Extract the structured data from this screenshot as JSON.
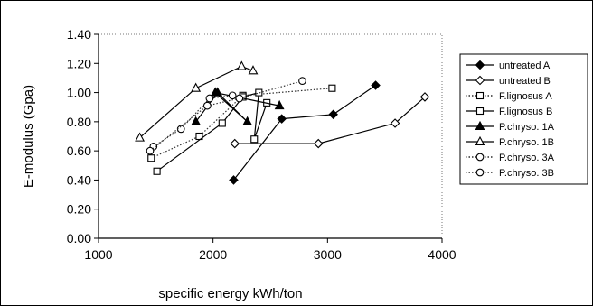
{
  "chart_data": {
    "type": "line",
    "title": "",
    "xlabel": "specific energy kWh/ton",
    "ylabel": "E-modulus (Gpa)",
    "xlim": [
      1000,
      4000
    ],
    "ylim": [
      0.0,
      1.4
    ],
    "xticks": [
      1000,
      2000,
      3000,
      4000
    ],
    "xtick_labels": [
      "1000",
      "2000",
      "3000",
      "4000"
    ],
    "yticks": [
      0.0,
      0.2,
      0.4,
      0.6,
      0.8,
      1.0,
      1.2,
      1.4
    ],
    "ytick_labels": [
      "0.00",
      "0.20",
      "0.40",
      "0.60",
      "0.80",
      "1.00",
      "1.20",
      "1.40"
    ],
    "grid": false,
    "legend_position": "right",
    "series": [
      {
        "name": "untreated A",
        "marker": "diamond",
        "filled": true,
        "dash": "solid",
        "x": [
          2180,
          2600,
          3050,
          3420
        ],
        "y": [
          0.4,
          0.82,
          0.85,
          1.05
        ]
      },
      {
        "name": "untreated B",
        "marker": "diamond",
        "filled": false,
        "dash": "solid",
        "x": [
          2190,
          2920,
          3590,
          3850
        ],
        "y": [
          0.65,
          0.65,
          0.79,
          0.97
        ]
      },
      {
        "name": "F.lignosus A",
        "marker": "square",
        "filled": false,
        "dash": "dotted",
        "x": [
          1460,
          1880,
          2260,
          3040
        ],
        "y": [
          0.55,
          0.7,
          0.98,
          1.03
        ]
      },
      {
        "name": "F.lignosus B",
        "marker": "square",
        "filled": false,
        "dash": "solid",
        "x": [
          1510,
          2080,
          2260,
          2400,
          2360,
          2470
        ],
        "y": [
          0.46,
          0.79,
          0.97,
          1.0,
          0.68,
          0.93
        ]
      },
      {
        "name": "P.chryso. 1A",
        "marker": "triangle",
        "filled": true,
        "dash": "solid",
        "x": [
          1850,
          2040,
          2300,
          2020,
          2580
        ],
        "y": [
          0.8,
          1.0,
          0.8,
          1.0,
          0.91
        ]
      },
      {
        "name": "P.chryso. 1B",
        "marker": "triangle",
        "filled": false,
        "dash": "solid",
        "x": [
          1360,
          1850,
          2250,
          2350
        ],
        "y": [
          0.69,
          1.03,
          1.18,
          1.15
        ]
      },
      {
        "name": "P.chryso. 3A",
        "marker": "circle",
        "filled": false,
        "dash": "dotted",
        "x": [
          1480,
          1720,
          1970,
          2170
        ],
        "y": [
          0.63,
          0.75,
          0.96,
          0.98
        ]
      },
      {
        "name": "P.chryso. 3B",
        "marker": "circle",
        "filled": false,
        "dash": "dotted",
        "x": [
          1450,
          1950,
          2230,
          2780
        ],
        "y": [
          0.6,
          0.91,
          0.96,
          1.08
        ]
      }
    ]
  }
}
